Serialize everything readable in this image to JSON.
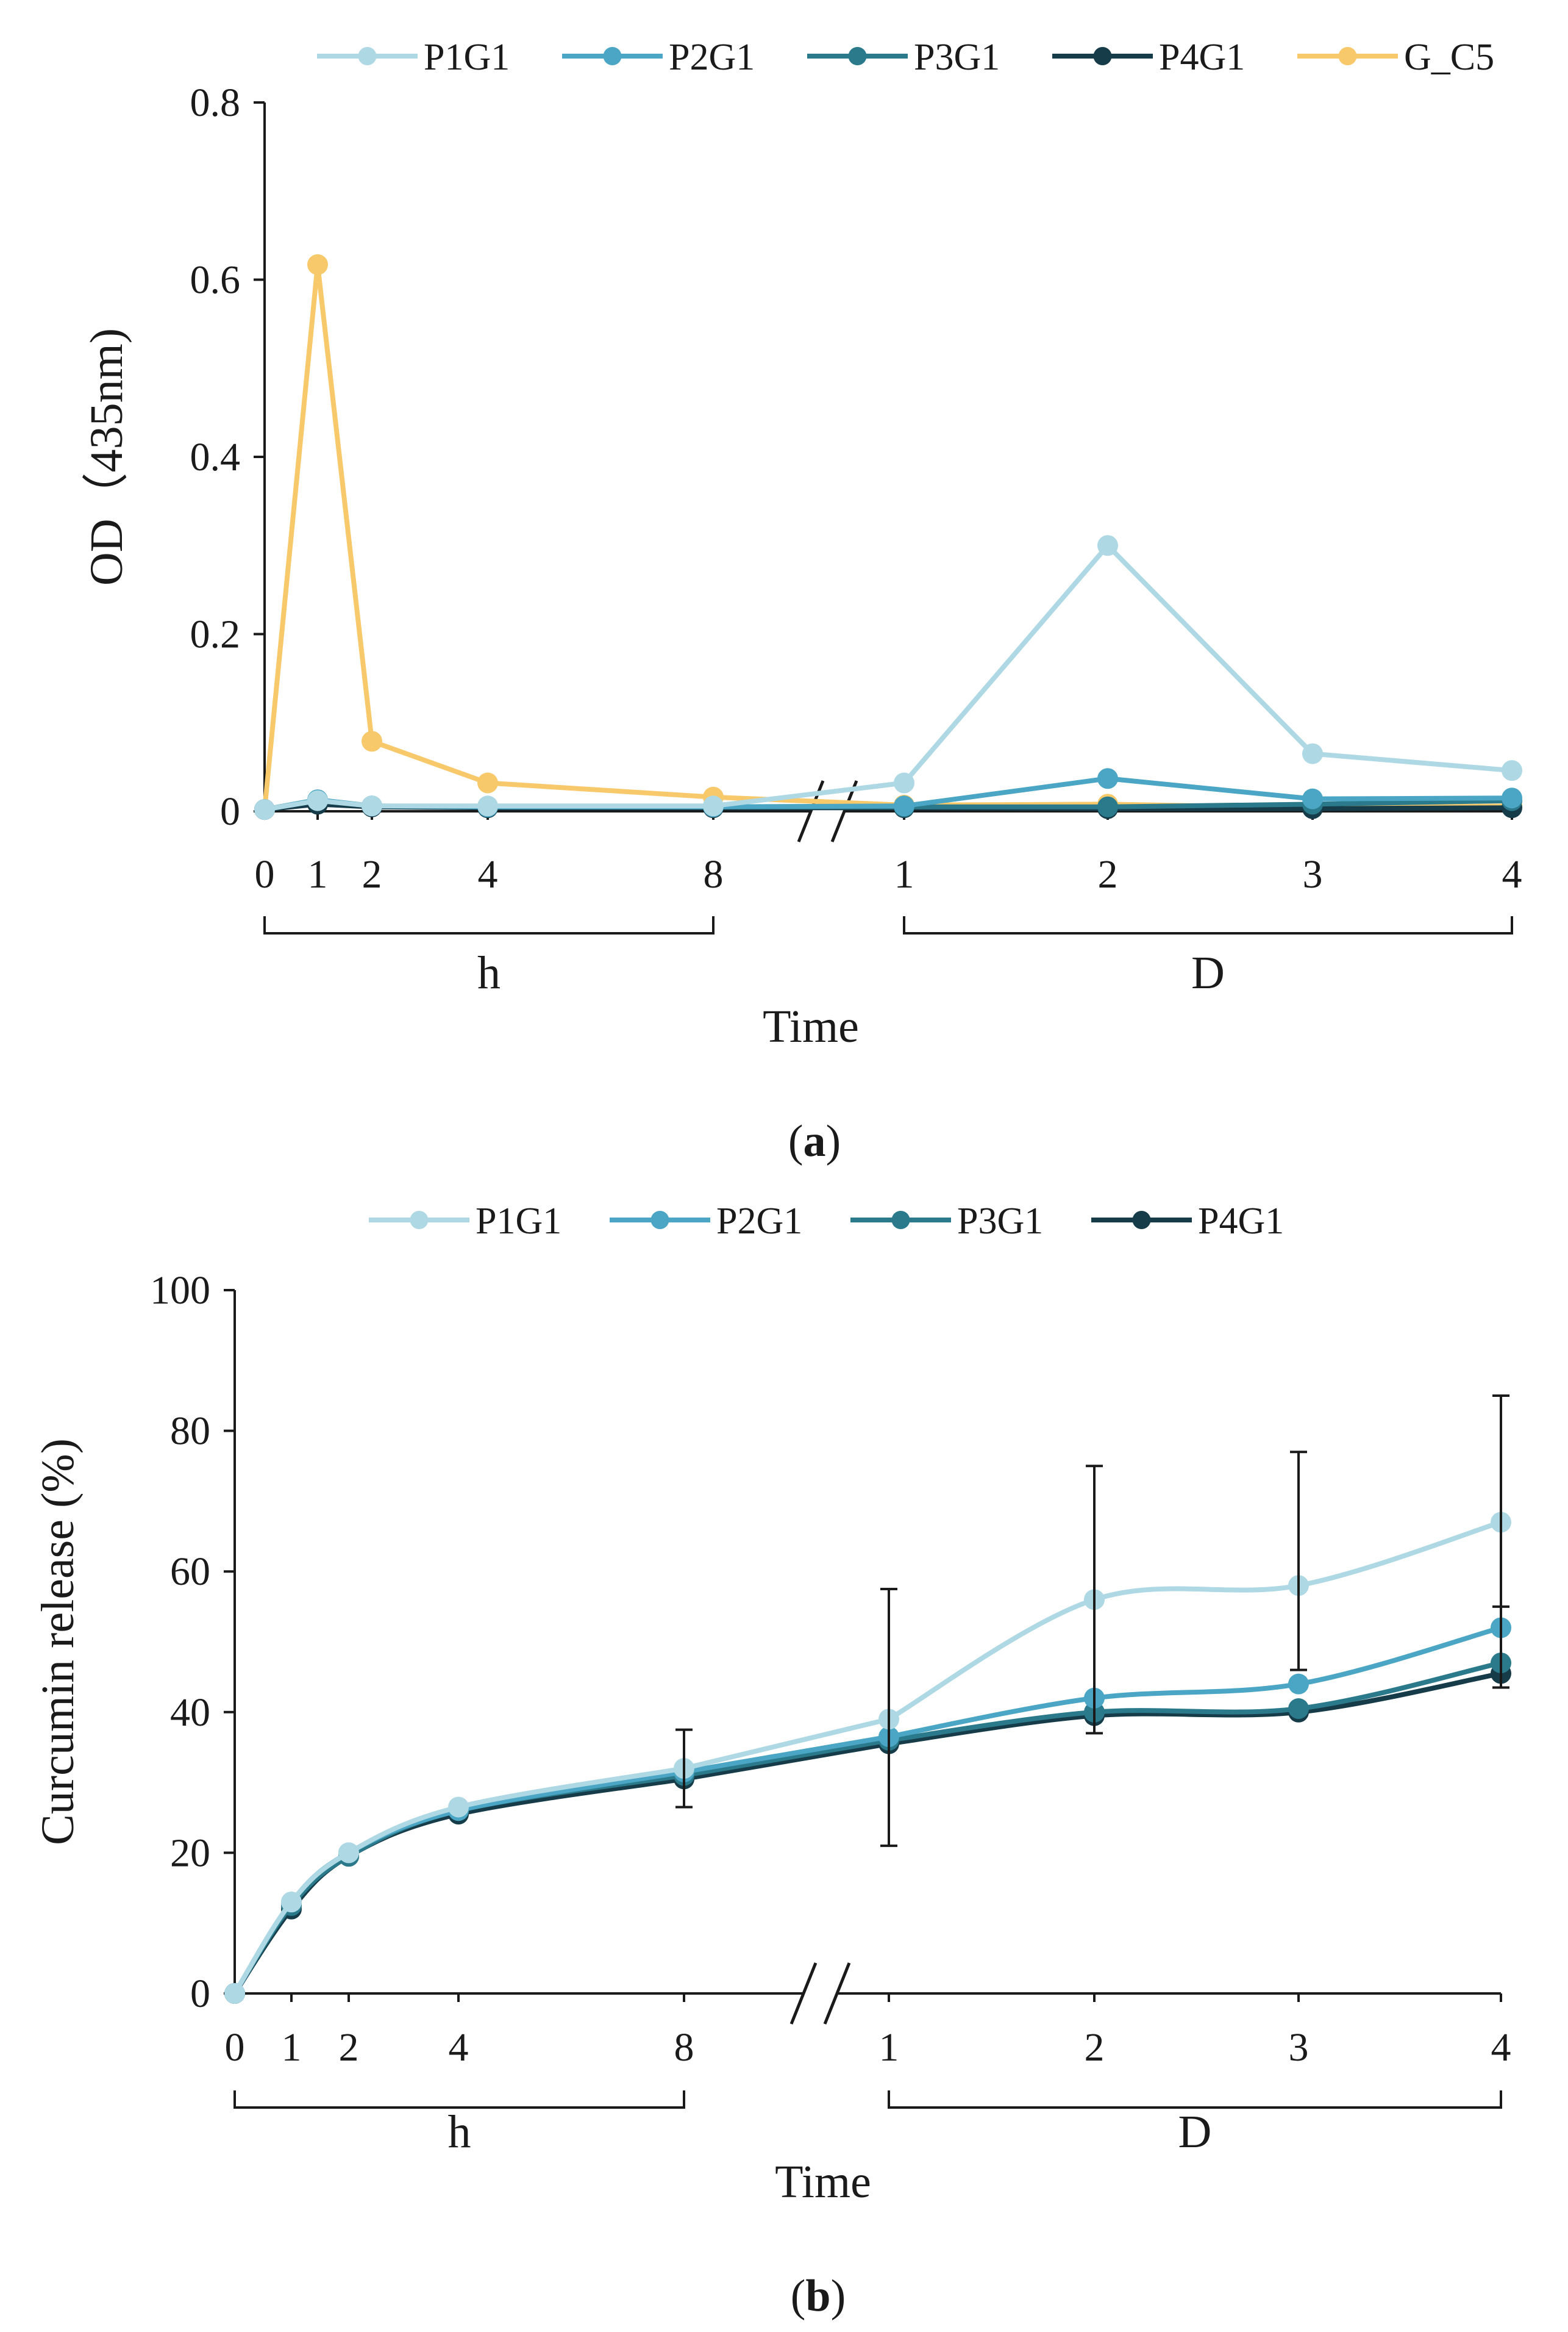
{
  "figure": {
    "panel_a_label": "(a)",
    "panel_b_label": "(b)"
  },
  "colors": {
    "P1G1": "#add8e4",
    "P2G1": "#4aa6c4",
    "P3G1": "#2a7a8c",
    "P4G1": "#163c4a",
    "G_C5": "#f7c96b",
    "axis": "#1a1a1a"
  },
  "chart_data": [
    {
      "type": "line",
      "title": "",
      "xlabel": "Time",
      "ylabel": "OD（435nm)",
      "ylim": [
        0,
        0.8
      ],
      "yticks": [
        0,
        0.2,
        0.4,
        0.6,
        0.8
      ],
      "ytick_labels": [
        "0",
        "0.2",
        "0.4",
        "0.6",
        "0.8"
      ],
      "legend": [
        "P1G1",
        "P2G1",
        "P3G1",
        "P4G1",
        "G_C5"
      ],
      "legend_position": "top",
      "axis_break": true,
      "groups": [
        {
          "label": "h",
          "ticks": [
            "0",
            "1",
            "2",
            "4",
            "8"
          ]
        },
        {
          "label": "D",
          "ticks": [
            "1",
            "2",
            "3",
            "4"
          ]
        }
      ],
      "x_categories": [
        "0 h",
        "1 h",
        "2 h",
        "4 h",
        "8 h",
        "1 D",
        "2 D",
        "3 D",
        "4 D"
      ],
      "series": [
        {
          "name": "P1G1",
          "values": [
            0.002,
            0.012,
            0.006,
            0.006,
            0.006,
            0.032,
            0.3,
            0.065,
            0.046
          ]
        },
        {
          "name": "P2G1",
          "values": [
            0.002,
            0.013,
            0.006,
            0.005,
            0.005,
            0.006,
            0.037,
            0.014,
            0.015
          ]
        },
        {
          "name": "P3G1",
          "values": [
            0.002,
            0.012,
            0.006,
            0.005,
            0.005,
            0.005,
            0.005,
            0.008,
            0.012
          ]
        },
        {
          "name": "P4G1",
          "values": [
            0.002,
            0.008,
            0.005,
            0.004,
            0.004,
            0.004,
            0.003,
            0.003,
            0.004
          ]
        },
        {
          "name": "G_C5",
          "values": [
            0.002,
            0.617,
            0.079,
            0.032,
            0.016,
            0.007,
            0.008,
            0.004,
            0.006
          ]
        }
      ]
    },
    {
      "type": "line",
      "title": "",
      "xlabel": "Time",
      "ylabel": "Curcumin release (%)",
      "ylim": [
        0,
        100
      ],
      "yticks": [
        0,
        20,
        40,
        60,
        80,
        100
      ],
      "ytick_labels": [
        "0",
        "20",
        "40",
        "60",
        "80",
        "100"
      ],
      "legend": [
        "P1G1",
        "P2G1",
        "P3G1",
        "P4G1"
      ],
      "legend_position": "top",
      "axis_break": true,
      "groups": [
        {
          "label": "h",
          "ticks": [
            "0",
            "1",
            "2",
            "4",
            "8"
          ]
        },
        {
          "label": "D",
          "ticks": [
            "1",
            "2",
            "3",
            "4"
          ]
        }
      ],
      "x_categories": [
        "0 h",
        "1 h",
        "2 h",
        "4 h",
        "8 h",
        "1 D",
        "2 D",
        "3 D",
        "4 D"
      ],
      "series": [
        {
          "name": "P1G1",
          "values": [
            0,
            13,
            20,
            26.5,
            32,
            39,
            56,
            58,
            67
          ]
        },
        {
          "name": "P2G1",
          "values": [
            0,
            13,
            20,
            26,
            31.5,
            36.5,
            42,
            44,
            52
          ]
        },
        {
          "name": "P3G1",
          "values": [
            0,
            12.5,
            19.5,
            26,
            31,
            36,
            40,
            40.5,
            47
          ]
        },
        {
          "name": "P4G1",
          "values": [
            0,
            12,
            19.5,
            25.5,
            30.5,
            35.5,
            39.5,
            40,
            45.5
          ]
        }
      ],
      "error_bars": [
        {
          "x": "8 h",
          "low": 26.5,
          "high": 37.5
        },
        {
          "x": "1 D",
          "low": 21,
          "high": 57.5
        },
        {
          "x": "2 D",
          "low": 37,
          "high": 75
        },
        {
          "x": "3 D",
          "low": 46,
          "high": 77
        },
        {
          "x": "4 D",
          "low": 43.5,
          "high": 85
        },
        {
          "x": "4 D",
          "low": 43.5,
          "high": 55
        }
      ]
    }
  ]
}
